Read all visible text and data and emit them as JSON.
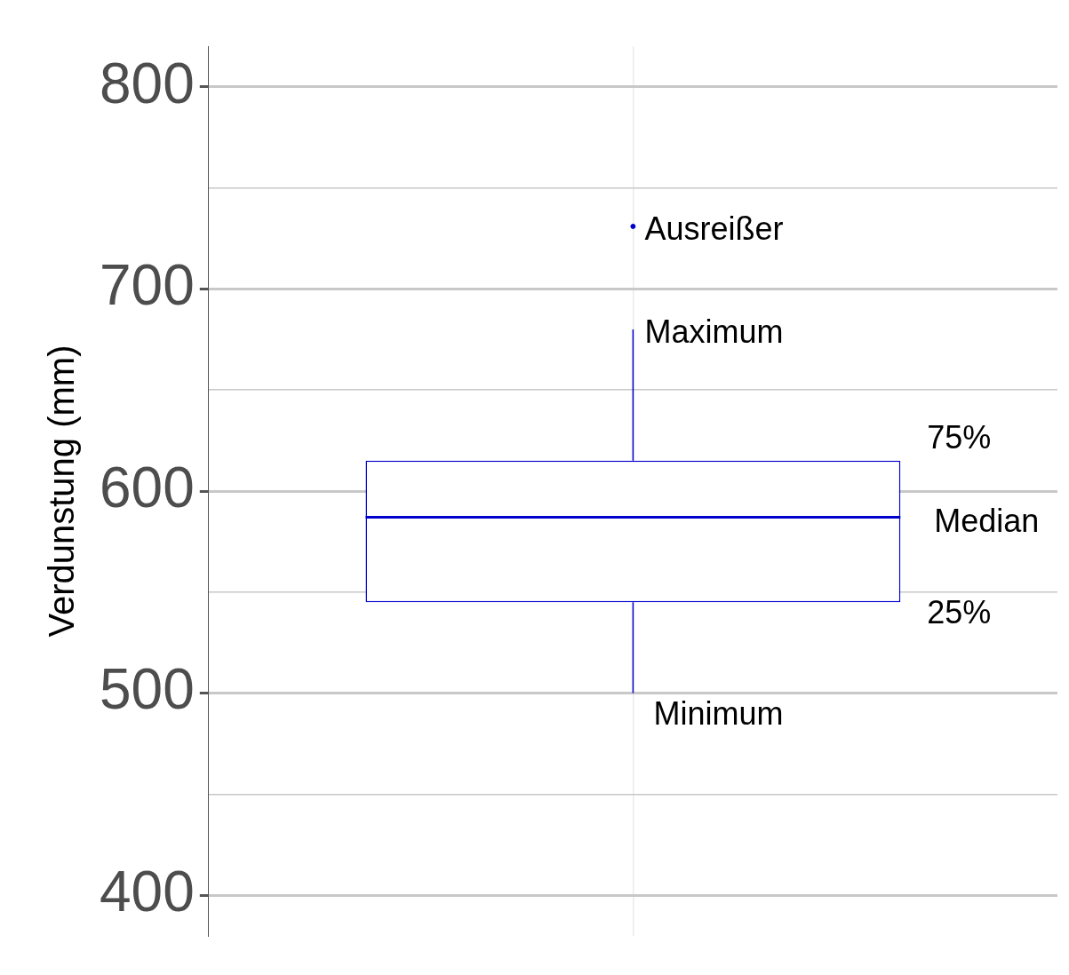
{
  "chart_data": {
    "type": "box",
    "ylabel": "Verdunstung (mm)",
    "categories": [
      null
    ],
    "boxes": [
      {
        "low": 500,
        "q1": 545,
        "median": 587,
        "q3": 615,
        "high": 680,
        "outliers": [
          731
        ]
      }
    ],
    "color": "#0000cc",
    "ylim": [
      380,
      820
    ],
    "yticks": [
      400,
      {
        "value": 450,
        "label": null
      },
      500,
      {
        "value": 550,
        "label": null
      },
      600,
      {
        "value": 650,
        "label": null
      },
      700,
      {
        "value": 750,
        "label": null
      },
      800
    ],
    "grid": true,
    "annotations": [
      "Ausreißer",
      "Maximum",
      "75%",
      "Median",
      "25%",
      "Minimum"
    ]
  }
}
